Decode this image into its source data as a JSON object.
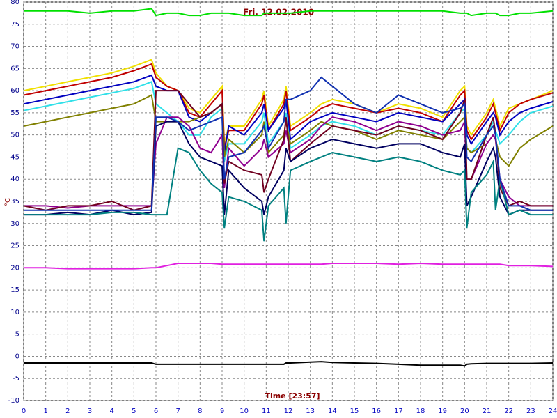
{
  "chart_data": {
    "type": "line",
    "title": "Fri. 12.02.2010",
    "x_label": "Time [23:57]",
    "y_label": "°C",
    "x": [
      0,
      1,
      2,
      3,
      4,
      5,
      5.8,
      6,
      6.5,
      7,
      7.5,
      8,
      8.5,
      9,
      9.1,
      9.3,
      10,
      10.8,
      10.9,
      11.1,
      11.8,
      11.9,
      12.1,
      13,
      13.5,
      14,
      15,
      16,
      17,
      18,
      19,
      19.8,
      20,
      20.1,
      20.3,
      21,
      21.3,
      21.4,
      21.6,
      22,
      22.5,
      23,
      24
    ],
    "xlim": [
      0,
      24
    ],
    "xticks": [
      0,
      1,
      2,
      3,
      4,
      5,
      6,
      7,
      8,
      9,
      10,
      11,
      12,
      13,
      14,
      15,
      16,
      17,
      18,
      19,
      20,
      21,
      22,
      23,
      24
    ],
    "ylim": [
      -10,
      80
    ],
    "yticks": [
      -10,
      -5,
      0,
      5,
      10,
      15,
      20,
      25,
      30,
      35,
      40,
      45,
      50,
      55,
      60,
      65,
      70,
      75,
      80
    ],
    "grid": true,
    "series": [
      {
        "color": "#00e000",
        "values": [
          78,
          78,
          78,
          77.5,
          78,
          78,
          78.5,
          77,
          77.5,
          77.5,
          77,
          77,
          77.5,
          77.5,
          77.5,
          77.5,
          77,
          77,
          77.5,
          77.5,
          77.5,
          77.5,
          77.5,
          78,
          78,
          78,
          78,
          78,
          78,
          78,
          78,
          77.5,
          77.5,
          77.5,
          77,
          77.5,
          77.5,
          77.5,
          77,
          77,
          77.5,
          77.5,
          78
        ]
      },
      {
        "color": "#e020e0",
        "values": [
          20,
          20,
          19.8,
          19.8,
          19.8,
          19.8,
          20,
          20,
          20.5,
          21,
          21,
          21,
          21,
          20.8,
          20.8,
          20.8,
          20.8,
          20.8,
          20.8,
          20.8,
          20.8,
          20.8,
          20.8,
          20.8,
          20.8,
          21,
          21,
          21,
          20.8,
          21,
          20.8,
          20.8,
          20.8,
          20.8,
          20.8,
          20.8,
          20.8,
          20.8,
          20.8,
          20.5,
          20.5,
          20.5,
          20.3
        ]
      },
      {
        "color": "#000000",
        "values": [
          -1.5,
          -1.5,
          -1.5,
          -1.5,
          -1.5,
          -1.5,
          -1.5,
          -1.8,
          -1.8,
          -1.8,
          -1.8,
          -1.8,
          -1.8,
          -1.8,
          -1.8,
          -1.8,
          -1.8,
          -1.8,
          -1.8,
          -1.8,
          -1.8,
          -1.5,
          -1.5,
          -1.3,
          -1.2,
          -1.4,
          -1.5,
          -1.6,
          -1.8,
          -2,
          -2,
          -2,
          -2.2,
          -1.8,
          -1.7,
          -1.6,
          -1.6,
          -1.6,
          -1.6,
          -1.6,
          -1.6,
          -1.6,
          -1.5
        ]
      },
      {
        "color": "#f0e000",
        "values": [
          60,
          61,
          62,
          63,
          64,
          65.5,
          67,
          64,
          61,
          60,
          56,
          55,
          58,
          61,
          48,
          52,
          52,
          58,
          60,
          52,
          58,
          61,
          52,
          55,
          57,
          58,
          57,
          55,
          57,
          56,
          54,
          60,
          61,
          52,
          50,
          55,
          58,
          56,
          52,
          56,
          57,
          58,
          60
        ]
      },
      {
        "color": "#c00000",
        "values": [
          59,
          60,
          61,
          62,
          63,
          64.5,
          66,
          63,
          61,
          60,
          55,
          54,
          57,
          60,
          47,
          51,
          51,
          57,
          59,
          51,
          57,
          60,
          51,
          54,
          56,
          57,
          56,
          55,
          56,
          55,
          53,
          59,
          60,
          51,
          49,
          54,
          57,
          55,
          51,
          55,
          57,
          58,
          59.5
        ]
      },
      {
        "color": "#0000c0",
        "values": [
          57,
          58,
          59,
          60,
          61,
          62,
          63.5,
          61,
          60,
          60,
          54,
          53,
          55,
          57,
          46,
          52,
          50,
          55,
          57,
          51,
          56,
          58,
          49,
          53,
          54,
          55,
          54,
          53,
          55,
          54,
          53,
          57,
          58,
          50,
          48,
          53,
          55,
          54,
          50,
          53,
          55,
          56,
          57.5
        ]
      },
      {
        "color": "#30e0e8",
        "values": [
          55.5,
          56.5,
          57.5,
          58.5,
          59.5,
          60.5,
          62,
          57,
          55,
          53,
          50,
          50,
          54,
          56,
          44,
          48,
          48,
          53,
          55,
          48,
          53,
          55,
          47,
          50,
          52,
          53,
          52,
          50,
          52,
          51,
          50,
          55,
          56,
          47,
          46,
          50,
          53,
          51,
          48,
          50,
          53,
          55,
          56.5
        ]
      },
      {
        "color": "#808000",
        "values": [
          52,
          53,
          54,
          55,
          56,
          57,
          59,
          53,
          53,
          53,
          53,
          54,
          55,
          57,
          45,
          49,
          46,
          50,
          53,
          46,
          50,
          53,
          48,
          51,
          53,
          52,
          51,
          49,
          51,
          50,
          49,
          53,
          54,
          47,
          46,
          48,
          50,
          49,
          45,
          43,
          47,
          49,
          52
        ]
      },
      {
        "color": "#900090",
        "values": [
          34,
          34,
          33.5,
          34,
          34,
          34,
          34,
          48,
          54,
          54,
          52,
          47,
          46,
          50,
          38,
          47,
          43,
          47,
          49,
          45,
          48,
          51,
          46,
          49,
          52,
          54,
          53,
          51,
          53,
          52,
          50,
          51,
          53,
          40,
          40,
          48,
          50,
          49,
          40,
          36,
          34,
          34,
          34
        ]
      },
      {
        "color": "#700020",
        "values": [
          34,
          33,
          34,
          34,
          35,
          33,
          34,
          60,
          60,
          60,
          57,
          54,
          55,
          57,
          39,
          44,
          42,
          41,
          37,
          40,
          49,
          54,
          44,
          48,
          50,
          52,
          51,
          50,
          52,
          51,
          49,
          55,
          58,
          40,
          40,
          50,
          54,
          50,
          38,
          34,
          35,
          34,
          34
        ]
      },
      {
        "color": "#000060",
        "values": [
          32,
          32,
          32.5,
          32,
          33,
          32,
          32.5,
          52,
          53,
          53,
          48,
          45,
          44,
          43,
          32,
          42,
          38,
          35,
          32,
          36,
          42,
          47,
          44,
          47,
          48,
          49,
          48,
          47,
          48,
          48,
          46,
          45,
          48,
          34,
          36,
          44,
          47,
          45,
          36,
          32,
          33,
          33,
          33
        ]
      },
      {
        "color": "#008080",
        "values": [
          32,
          32,
          32,
          32,
          32.5,
          32.5,
          32,
          32,
          32,
          47,
          46,
          42,
          39,
          37,
          29,
          36,
          35,
          33,
          26,
          34,
          38,
          30,
          42,
          44,
          45,
          46,
          45,
          44,
          45,
          44,
          42,
          41,
          42,
          29,
          37,
          41,
          44,
          33,
          40,
          32,
          33,
          32,
          32
        ]
      },
      {
        "color": "#1030b0",
        "values": [
          33,
          33,
          33,
          33,
          33,
          33,
          33,
          54,
          54,
          53,
          51,
          52,
          53,
          54,
          40,
          45,
          46,
          51,
          52,
          47,
          53,
          58,
          58,
          60,
          63,
          61,
          57,
          55,
          59,
          57,
          55,
          56,
          57,
          45,
          44,
          50,
          52,
          50,
          40,
          34,
          34,
          33,
          33
        ]
      }
    ]
  }
}
